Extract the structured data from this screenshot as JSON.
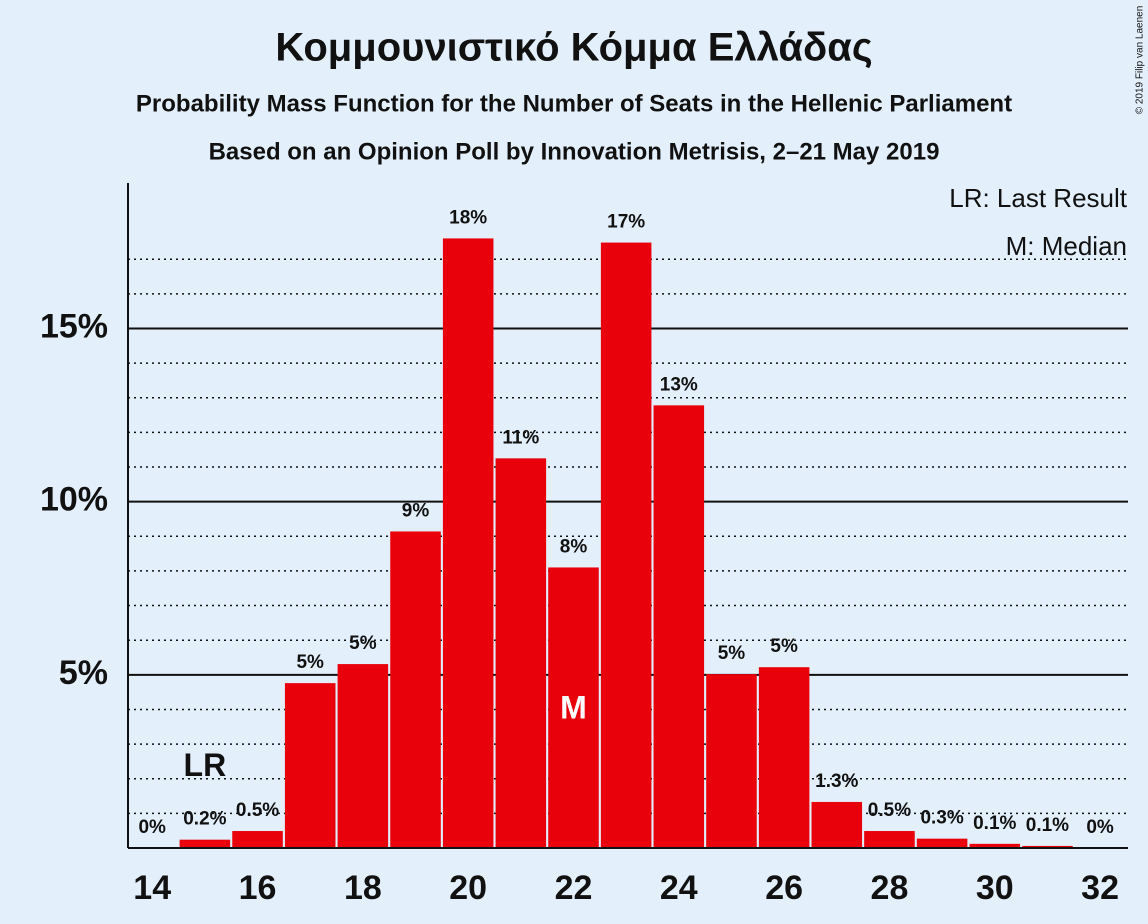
{
  "chart_data": {
    "type": "bar",
    "title": "Κομμουνιστικό Κόμμα Ελλάδας",
    "subtitle": "Probability Mass Function for the Number of Seats in the Hellenic Parliament",
    "subtitle2": "Based on an Opinion Poll by Innovation Metrisis, 2–21 May 2019",
    "copyright": "© 2019 Filip van Laenen",
    "x": [
      14,
      15,
      16,
      17,
      18,
      19,
      20,
      21,
      22,
      23,
      24,
      25,
      26,
      27,
      28,
      29,
      30,
      31,
      32
    ],
    "values": [
      0,
      0.24,
      0.49,
      4.76,
      5.31,
      9.14,
      17.6,
      11.25,
      8.1,
      17.48,
      12.78,
      5.02,
      5.22,
      1.33,
      0.49,
      0.27,
      0.12,
      0.06,
      0
    ],
    "value_labels": [
      "0%",
      "0.2%",
      "0.5%",
      "5%",
      "5%",
      "9%",
      "18%",
      "11%",
      "8%",
      "17%",
      "13%",
      "5%",
      "5%",
      "1.3%",
      "0.5%",
      "0.3%",
      "0.1%",
      "0.1%",
      "0%"
    ],
    "color": "#e8000b",
    "xlim": [
      13.54,
      32.53
    ],
    "xticks": [
      14,
      16,
      18,
      20,
      22,
      24,
      26,
      28,
      30,
      32
    ],
    "ylim": [
      0,
      19.2
    ],
    "yticks": [
      {
        "value": 5,
        "label": "5%"
      },
      {
        "value": 10,
        "label": "10%"
      },
      {
        "value": 15,
        "label": "15%"
      }
    ],
    "minor_yticks": [
      1,
      2,
      3,
      4,
      6,
      7,
      8,
      9,
      11,
      12,
      13,
      14,
      16,
      17
    ],
    "annotations": [
      {
        "text": "LR",
        "x": 15
      },
      {
        "text": "M",
        "x": 22
      }
    ],
    "legend": [
      "LR: Last Result",
      "M: Median"
    ]
  }
}
